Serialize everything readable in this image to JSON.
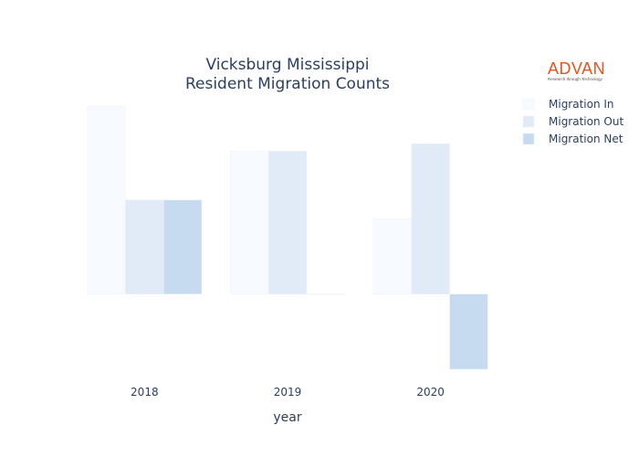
{
  "chart_data": {
    "type": "bar",
    "title_lines": [
      "Vicksburg Mississippi",
      "Resident Migration Counts"
    ],
    "xlabel": "year",
    "ylabel": "",
    "categories": [
      "2018",
      "2019",
      "2020"
    ],
    "series": [
      {
        "name": "Migration In",
        "values": [
          250,
          190,
          100
        ],
        "color": "#f7fafe"
      },
      {
        "name": "Migration Out",
        "values": [
          125,
          190,
          200
        ],
        "color": "#e0ebf7"
      },
      {
        "name": "Migration Net",
        "values": [
          125,
          0,
          -100
        ],
        "color": "#c6dbef"
      }
    ],
    "ylim": [
      -100,
      250
    ],
    "grid": false,
    "legend_position": "top-right"
  },
  "logo": {
    "name": "ADVAN",
    "tagline": "Research through Technology"
  }
}
